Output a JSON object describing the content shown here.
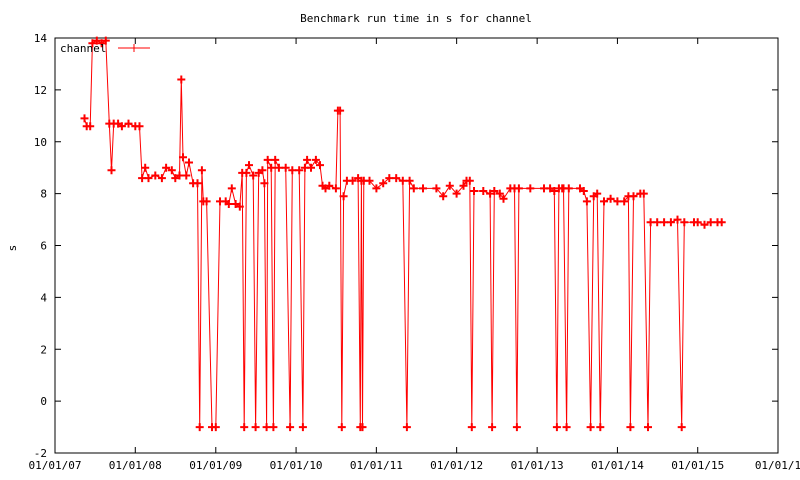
{
  "chart_data": {
    "type": "line",
    "title": "Benchmark run time in s for channel",
    "xlabel": "",
    "ylabel": "s",
    "legend_position": "top-left",
    "grid": false,
    "xlim": [
      "2007-01-01",
      "2016-01-01"
    ],
    "ylim": [
      -2,
      14
    ],
    "x_ticks": [
      "01/01/07",
      "01/01/08",
      "01/01/09",
      "01/01/10",
      "01/01/11",
      "01/01/12",
      "01/01/13",
      "01/01/14",
      "01/01/15",
      "01/01/1"
    ],
    "y_ticks": [
      "-2",
      "0",
      "2",
      "4",
      "6",
      "8",
      "10",
      "12",
      "14"
    ],
    "series": [
      {
        "name": "channel",
        "color": "#ff0000",
        "points": [
          [
            "2007-05-15",
            10.9
          ],
          [
            "2007-05-25",
            10.6
          ],
          [
            "2007-06-10",
            10.6
          ],
          [
            "2007-06-20",
            13.8
          ],
          [
            "2007-07-10",
            13.9
          ],
          [
            "2007-08-01",
            13.8
          ],
          [
            "2007-08-20",
            13.9
          ],
          [
            "2007-09-05",
            10.7
          ],
          [
            "2007-09-15",
            8.9
          ],
          [
            "2007-09-25",
            10.7
          ],
          [
            "2007-10-15",
            10.7
          ],
          [
            "2007-11-01",
            10.6
          ],
          [
            "2007-12-01",
            10.7
          ],
          [
            "2008-01-01",
            10.6
          ],
          [
            "2008-01-20",
            10.6
          ],
          [
            "2008-02-01",
            8.6
          ],
          [
            "2008-02-15",
            9.0
          ],
          [
            "2008-03-01",
            8.6
          ],
          [
            "2008-04-01",
            8.7
          ],
          [
            "2008-05-01",
            8.6
          ],
          [
            "2008-05-20",
            9.0
          ],
          [
            "2008-06-15",
            8.9
          ],
          [
            "2008-07-01",
            8.6
          ],
          [
            "2008-07-20",
            8.7
          ],
          [
            "2008-07-28",
            12.4
          ],
          [
            "2008-08-05",
            9.4
          ],
          [
            "2008-08-20",
            8.7
          ],
          [
            "2008-09-01",
            9.2
          ],
          [
            "2008-09-20",
            8.4
          ],
          [
            "2008-10-10",
            8.4
          ],
          [
            "2008-10-20",
            -1.0
          ],
          [
            "2008-10-30",
            8.9
          ],
          [
            "2008-11-05",
            7.7
          ],
          [
            "2008-11-20",
            7.7
          ],
          [
            "2008-12-15",
            -1.0
          ],
          [
            "2009-01-01",
            -1.0
          ],
          [
            "2009-01-20",
            7.7
          ],
          [
            "2009-02-15",
            7.7
          ],
          [
            "2009-03-01",
            7.6
          ],
          [
            "2009-03-15",
            8.2
          ],
          [
            "2009-04-01",
            7.6
          ],
          [
            "2009-04-20",
            7.5
          ],
          [
            "2009-05-01",
            8.8
          ],
          [
            "2009-05-10",
            -1.0
          ],
          [
            "2009-05-20",
            8.8
          ],
          [
            "2009-06-01",
            9.1
          ],
          [
            "2009-06-20",
            8.7
          ],
          [
            "2009-07-01",
            -1.0
          ],
          [
            "2009-07-15",
            8.8
          ],
          [
            "2009-08-01",
            8.9
          ],
          [
            "2009-08-10",
            8.4
          ],
          [
            "2009-08-20",
            -1.0
          ],
          [
            "2009-08-25",
            9.3
          ],
          [
            "2009-09-10",
            9.0
          ],
          [
            "2009-09-20",
            -1.0
          ],
          [
            "2009-09-28",
            9.3
          ],
          [
            "2009-10-15",
            9.0
          ],
          [
            "2009-11-15",
            9.0
          ],
          [
            "2009-12-05",
            -1.0
          ],
          [
            "2009-12-15",
            8.9
          ],
          [
            "2010-01-15",
            8.9
          ],
          [
            "2010-02-01",
            -1.0
          ],
          [
            "2010-02-10",
            9.0
          ],
          [
            "2010-02-20",
            9.3
          ],
          [
            "2010-03-10",
            9.0
          ],
          [
            "2010-04-01",
            9.3
          ],
          [
            "2010-04-20",
            9.1
          ],
          [
            "2010-05-01",
            8.3
          ],
          [
            "2010-05-15",
            8.2
          ],
          [
            "2010-06-01",
            8.3
          ],
          [
            "2010-07-01",
            8.2
          ],
          [
            "2010-07-10",
            11.2
          ],
          [
            "2010-07-20",
            11.2
          ],
          [
            "2010-07-28",
            -1.0
          ],
          [
            "2010-08-05",
            7.9
          ],
          [
            "2010-08-20",
            8.5
          ],
          [
            "2010-09-15",
            8.5
          ],
          [
            "2010-10-10",
            8.6
          ],
          [
            "2010-10-20",
            -1.0
          ],
          [
            "2010-10-25",
            8.5
          ],
          [
            "2010-10-30",
            -1.0
          ],
          [
            "2010-11-05",
            8.5
          ],
          [
            "2010-12-01",
            8.5
          ],
          [
            "2011-01-01",
            8.2
          ],
          [
            "2011-02-01",
            8.4
          ],
          [
            "2011-03-01",
            8.6
          ],
          [
            "2011-04-01",
            8.6
          ],
          [
            "2011-05-01",
            8.5
          ],
          [
            "2011-05-20",
            -1.0
          ],
          [
            "2011-06-01",
            8.5
          ],
          [
            "2011-06-20",
            8.2
          ],
          [
            "2011-08-01",
            8.2
          ],
          [
            "2011-10-01",
            8.2
          ],
          [
            "2011-11-01",
            7.9
          ],
          [
            "2011-12-01",
            8.3
          ],
          [
            "2012-01-01",
            8.0
          ],
          [
            "2012-02-01",
            8.3
          ],
          [
            "2012-02-15",
            8.5
          ],
          [
            "2012-03-01",
            8.5
          ],
          [
            "2012-03-10",
            -1.0
          ],
          [
            "2012-03-20",
            8.1
          ],
          [
            "2012-05-01",
            8.1
          ],
          [
            "2012-06-01",
            8.0
          ],
          [
            "2012-06-10",
            -1.0
          ],
          [
            "2012-06-20",
            8.1
          ],
          [
            "2012-07-15",
            8.0
          ],
          [
            "2012-08-01",
            7.8
          ],
          [
            "2012-09-01",
            8.2
          ],
          [
            "2012-09-20",
            8.2
          ],
          [
            "2012-10-01",
            -1.0
          ],
          [
            "2012-10-10",
            8.2
          ],
          [
            "2012-12-01",
            8.2
          ],
          [
            "2013-02-01",
            8.2
          ],
          [
            "2013-03-01",
            8.2
          ],
          [
            "2013-03-20",
            8.1
          ],
          [
            "2013-04-01",
            -1.0
          ],
          [
            "2013-04-10",
            8.2
          ],
          [
            "2013-04-25",
            8.2
          ],
          [
            "2013-05-01",
            8.2
          ],
          [
            "2013-05-15",
            -1.0
          ],
          [
            "2013-05-25",
            8.2
          ],
          [
            "2013-07-15",
            8.2
          ],
          [
            "2013-08-01",
            8.1
          ],
          [
            "2013-08-15",
            7.7
          ],
          [
            "2013-09-01",
            -1.0
          ],
          [
            "2013-09-15",
            7.9
          ],
          [
            "2013-10-01",
            8.0
          ],
          [
            "2013-10-15",
            -1.0
          ],
          [
            "2013-11-01",
            7.7
          ],
          [
            "2013-12-01",
            7.8
          ],
          [
            "2014-01-01",
            7.7
          ],
          [
            "2014-02-01",
            7.7
          ],
          [
            "2014-02-20",
            7.9
          ],
          [
            "2014-03-01",
            -1.0
          ],
          [
            "2014-03-15",
            7.9
          ],
          [
            "2014-04-15",
            8.0
          ],
          [
            "2014-05-01",
            8.0
          ],
          [
            "2014-05-20",
            -1.0
          ],
          [
            "2014-06-01",
            6.9
          ],
          [
            "2014-07-01",
            6.9
          ],
          [
            "2014-08-01",
            6.9
          ],
          [
            "2014-09-01",
            6.9
          ],
          [
            "2014-10-01",
            7.0
          ],
          [
            "2014-10-20",
            -1.0
          ],
          [
            "2014-11-01",
            6.9
          ],
          [
            "2014-12-15",
            6.9
          ],
          [
            "2015-01-01",
            6.9
          ],
          [
            "2015-02-01",
            6.8
          ],
          [
            "2015-03-01",
            6.9
          ],
          [
            "2015-04-01",
            6.9
          ],
          [
            "2015-04-20",
            6.9
          ]
        ]
      }
    ]
  }
}
